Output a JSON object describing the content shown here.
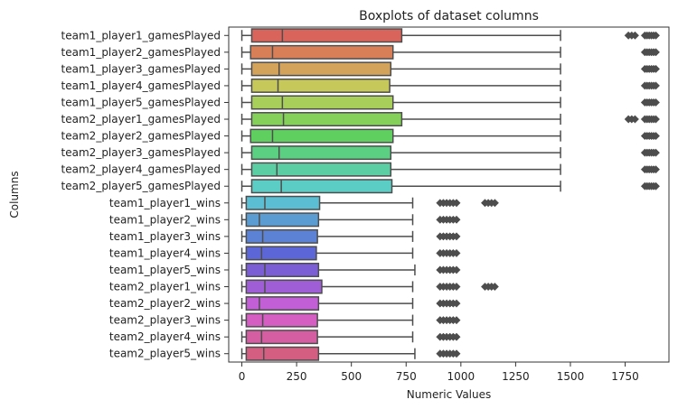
{
  "chart_data": {
    "type": "boxplot",
    "title": "Boxplots of dataset columns",
    "xlabel": "Numeric Values",
    "ylabel": "Columns",
    "xlim": [
      -60,
      1950
    ],
    "xticks": [
      0,
      250,
      500,
      750,
      1000,
      1250,
      1500,
      1750
    ],
    "grid": false,
    "series": [
      {
        "name": "team1_player1_gamesPlayed",
        "color": "#d9645b",
        "whisker_low": 0,
        "q1": 45,
        "median": 185,
        "q3": 730,
        "whisker_high": 1455,
        "outliers": [
          1765,
          1780,
          1795,
          1840,
          1850,
          1860,
          1870,
          1880,
          1890
        ]
      },
      {
        "name": "team1_player2_gamesPlayed",
        "color": "#d97f58",
        "whisker_low": 0,
        "q1": 40,
        "median": 140,
        "q3": 690,
        "whisker_high": 1455,
        "outliers": [
          1840,
          1850,
          1860,
          1870,
          1880,
          1890
        ]
      },
      {
        "name": "team1_player3_gamesPlayed",
        "color": "#d3a35b",
        "whisker_low": 0,
        "q1": 45,
        "median": 170,
        "q3": 680,
        "whisker_high": 1455,
        "outliers": [
          1840,
          1850,
          1860,
          1870,
          1880,
          1890
        ]
      },
      {
        "name": "team1_player4_gamesPlayed",
        "color": "#c7c85a",
        "whisker_low": 0,
        "q1": 45,
        "median": 165,
        "q3": 675,
        "whisker_high": 1455,
        "outliers": [
          1840,
          1850,
          1860,
          1870,
          1880,
          1890
        ]
      },
      {
        "name": "team1_player5_gamesPlayed",
        "color": "#a8cf59",
        "whisker_low": 0,
        "q1": 45,
        "median": 185,
        "q3": 690,
        "whisker_high": 1455,
        "outliers": [
          1840,
          1850,
          1860,
          1870,
          1880,
          1890
        ]
      },
      {
        "name": "team2_player1_gamesPlayed",
        "color": "#84d05a",
        "whisker_low": 0,
        "q1": 45,
        "median": 190,
        "q3": 730,
        "whisker_high": 1455,
        "outliers": [
          1765,
          1780,
          1795,
          1840,
          1850,
          1860,
          1870,
          1880,
          1890
        ]
      },
      {
        "name": "team2_player2_gamesPlayed",
        "color": "#5fcf60",
        "whisker_low": 0,
        "q1": 40,
        "median": 140,
        "q3": 690,
        "whisker_high": 1455,
        "outliers": [
          1840,
          1850,
          1860,
          1870,
          1880,
          1890
        ]
      },
      {
        "name": "team2_player3_gamesPlayed",
        "color": "#5bcf82",
        "whisker_low": 0,
        "q1": 45,
        "median": 170,
        "q3": 680,
        "whisker_high": 1455,
        "outliers": [
          1840,
          1850,
          1860,
          1870,
          1880,
          1890
        ]
      },
      {
        "name": "team2_player4_gamesPlayed",
        "color": "#5bcea4",
        "whisker_low": 0,
        "q1": 45,
        "median": 160,
        "q3": 680,
        "whisker_high": 1455,
        "outliers": [
          1840,
          1850,
          1860,
          1870,
          1880,
          1890
        ]
      },
      {
        "name": "team2_player5_gamesPlayed",
        "color": "#5bcdc4",
        "whisker_low": 0,
        "q1": 45,
        "median": 180,
        "q3": 685,
        "whisker_high": 1455,
        "outliers": [
          1840,
          1850,
          1860,
          1870,
          1880,
          1890
        ]
      },
      {
        "name": "team1_player1_wins",
        "color": "#5bbed2",
        "whisker_low": 0,
        "q1": 20,
        "median": 105,
        "q3": 355,
        "whisker_high": 780,
        "outliers": [
          905,
          920,
          935,
          950,
          965,
          980,
          1110,
          1125,
          1140,
          1155
        ]
      },
      {
        "name": "team1_player2_wins",
        "color": "#5b9dd2",
        "whisker_low": 0,
        "q1": 20,
        "median": 80,
        "q3": 350,
        "whisker_high": 780,
        "outliers": [
          905,
          920,
          935,
          950,
          965,
          980
        ]
      },
      {
        "name": "team1_player3_wins",
        "color": "#5b82d4",
        "whisker_low": 0,
        "q1": 20,
        "median": 95,
        "q3": 345,
        "whisker_high": 780,
        "outliers": [
          905,
          920,
          935,
          950,
          965,
          980
        ]
      },
      {
        "name": "team1_player4_wins",
        "color": "#5c66d6",
        "whisker_low": 0,
        "q1": 20,
        "median": 90,
        "q3": 340,
        "whisker_high": 780,
        "outliers": [
          905,
          920,
          935,
          950,
          965,
          980
        ]
      },
      {
        "name": "team1_player5_wins",
        "color": "#7b5ed6",
        "whisker_low": 0,
        "q1": 20,
        "median": 105,
        "q3": 350,
        "whisker_high": 790,
        "outliers": [
          905,
          920,
          935,
          950,
          965,
          980
        ]
      },
      {
        "name": "team2_player1_wins",
        "color": "#a05ed6",
        "whisker_low": 0,
        "q1": 20,
        "median": 105,
        "q3": 365,
        "whisker_high": 780,
        "outliers": [
          905,
          920,
          935,
          950,
          965,
          980,
          1110,
          1125,
          1140,
          1155
        ]
      },
      {
        "name": "team2_player2_wins",
        "color": "#c25ed6",
        "whisker_low": 0,
        "q1": 20,
        "median": 80,
        "q3": 350,
        "whisker_high": 780,
        "outliers": [
          905,
          920,
          935,
          950,
          965,
          980
        ]
      },
      {
        "name": "team2_player3_wins",
        "color": "#d45ec2",
        "whisker_low": 0,
        "q1": 20,
        "median": 95,
        "q3": 345,
        "whisker_high": 780,
        "outliers": [
          905,
          920,
          935,
          950,
          965,
          980
        ]
      },
      {
        "name": "team2_player4_wins",
        "color": "#d45ea1",
        "whisker_low": 0,
        "q1": 20,
        "median": 90,
        "q3": 345,
        "whisker_high": 780,
        "outliers": [
          905,
          920,
          935,
          950,
          965,
          980
        ]
      },
      {
        "name": "team2_player5_wins",
        "color": "#d45e82",
        "whisker_low": 0,
        "q1": 20,
        "median": 100,
        "q3": 350,
        "whisker_high": 790,
        "outliers": [
          905,
          920,
          935,
          950,
          965,
          980
        ]
      }
    ]
  }
}
